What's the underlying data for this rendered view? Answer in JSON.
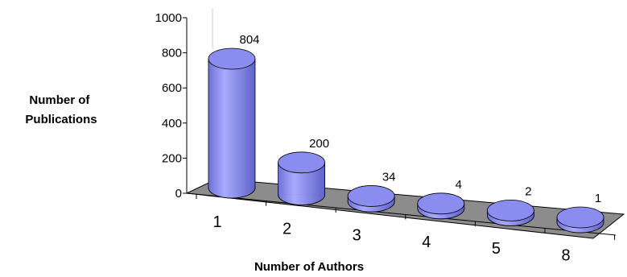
{
  "chart_data": {
    "type": "bar",
    "categories": [
      "1",
      "2",
      "3",
      "4",
      "5",
      "8"
    ],
    "values": [
      804,
      200,
      34,
      4,
      2,
      1
    ],
    "data_labels": [
      "804",
      "200",
      "34",
      "4",
      "2",
      "1"
    ],
    "xlabel": "Number of Authors",
    "ylabel_lines": [
      "Number of",
      "Publications"
    ],
    "ylim": [
      0,
      1000
    ],
    "yticks": [
      0,
      200,
      400,
      600,
      800,
      1000
    ],
    "style": "3d-cylinder",
    "bar_color": "#8a8cf0",
    "floor_color": "#8c8c8c",
    "grid": false
  }
}
